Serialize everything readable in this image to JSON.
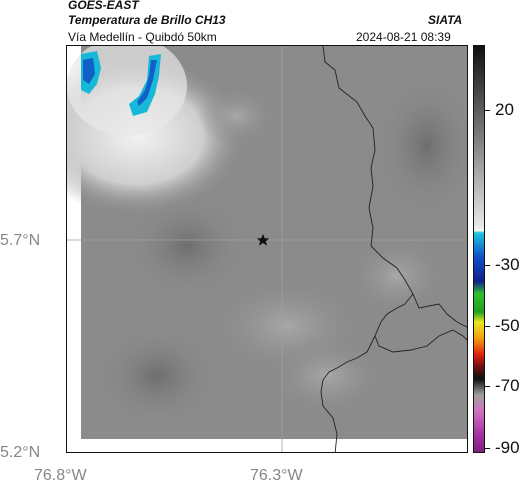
{
  "header": {
    "satellite": "GOES-EAST",
    "product": "Temperatura de Brillo CH13",
    "route": "Vía Medellín - Quibdó 50km",
    "agency": "SIATA",
    "timestamp": "2024-08-21 08:39"
  },
  "map": {
    "lat_labels": [
      "5.7°N",
      "5.2°N"
    ],
    "lon_labels": [
      "76.8°W",
      "76.3°W"
    ],
    "marker": "star-icon"
  },
  "colorbar": {
    "tick_labels": [
      "20",
      "-30",
      "-50",
      "-70",
      "-90"
    ],
    "colors": {
      "cold_cyan": "#18b8d8",
      "cold_blue": "#1040c0",
      "green": "#20c020",
      "yellow": "#e8e020",
      "red": "#e02010",
      "magenta": "#c040b0"
    }
  }
}
